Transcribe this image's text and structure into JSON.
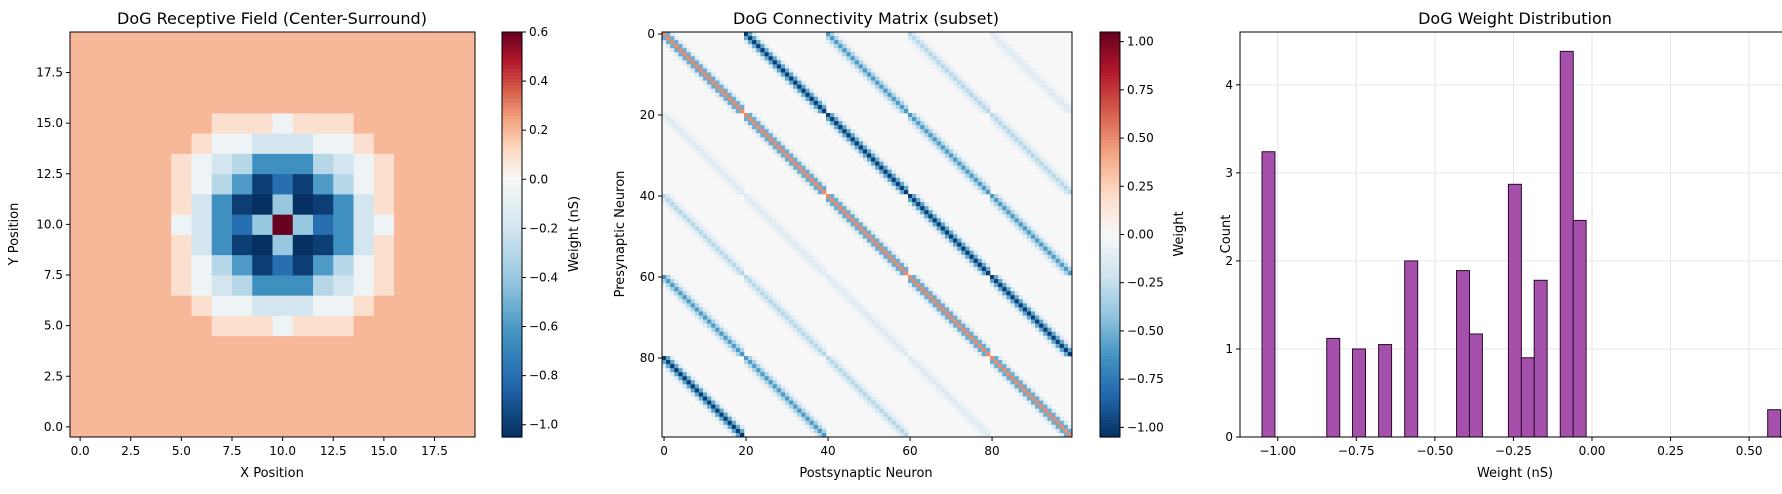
{
  "chart_data": [
    {
      "type": "heatmap",
      "title": "DoG Receptive Field (Center-Surround)",
      "xlabel": "X Position",
      "ylabel": "Y Position",
      "xticks": [
        "0.0",
        "2.5",
        "5.0",
        "7.5",
        "10.0",
        "12.5",
        "15.0",
        "17.5"
      ],
      "yticks": [
        "0.0",
        "2.5",
        "5.0",
        "7.5",
        "10.0",
        "12.5",
        "15.0",
        "17.5"
      ],
      "xlim": [
        -0.5,
        19.5
      ],
      "ylim": [
        -0.5,
        19.5
      ],
      "grid_size": 20,
      "center": [
        10,
        10
      ],
      "colormap": "RdBu_r",
      "vmin": -1.05,
      "vmax": 0.6,
      "colorbar": {
        "label": "Weight (nS)",
        "ticks": [
          "−1.0",
          "−0.8",
          "−0.6",
          "−0.4",
          "−0.2",
          "0.0",
          "0.2",
          "0.4",
          "0.6"
        ],
        "values": [
          -1.0,
          -0.8,
          -0.6,
          -0.4,
          -0.2,
          0.0,
          0.2,
          0.4,
          0.6
        ]
      },
      "radial_profile": [
        {
          "r2_max": 0,
          "value": 0.6
        },
        {
          "r2_max": 1,
          "value": -0.4
        },
        {
          "r2_max": 2,
          "value": -1.05
        },
        {
          "r2_max": 4,
          "value": -0.8
        },
        {
          "r2_max": 5,
          "value": -1.0
        },
        {
          "r2_max": 8,
          "value": -0.6
        },
        {
          "r2_max": 10,
          "value": -0.65
        },
        {
          "r2_max": 13,
          "value": -0.3
        },
        {
          "r2_max": 18,
          "value": -0.2
        },
        {
          "r2_max": 25,
          "value": -0.05
        },
        {
          "r2_max": 34,
          "value": 0.1
        },
        {
          "r2_max": 10000,
          "value": 0.2
        }
      ]
    },
    {
      "type": "heatmap",
      "title": "DoG Connectivity Matrix (subset)",
      "xlabel": "Postsynaptic Neuron",
      "ylabel": "Presynaptic Neuron",
      "xticks": [
        "0",
        "20",
        "40",
        "60",
        "80"
      ],
      "yticks": [
        "0",
        "20",
        "40",
        "60",
        "80"
      ],
      "xlim": [
        -0.5,
        99.5
      ],
      "ylim": [
        99.5,
        -0.5
      ],
      "size": 100,
      "block_size": 20,
      "colormap": "RdBu_r",
      "vmin": -1.05,
      "vmax": 1.05,
      "colorbar": {
        "label": "Weight",
        "ticks": [
          "−1.00",
          "−0.75",
          "−0.50",
          "−0.25",
          "0.00",
          "0.25",
          "0.50",
          "0.75",
          "1.00"
        ],
        "values": [
          -1.0,
          -0.75,
          -0.5,
          -0.25,
          0.0,
          0.25,
          0.5,
          0.75,
          1.0
        ]
      },
      "block_offset_weights": [
        {
          "offset": 0,
          "weight": -0.95
        },
        {
          "offset": 1,
          "weight": -1.0
        },
        {
          "offset": 2,
          "weight": -0.6
        },
        {
          "offset": 3,
          "weight": -0.3
        },
        {
          "offset": 4,
          "weight": -0.15
        }
      ],
      "diagonal_weight": 0.5
    },
    {
      "type": "bar",
      "title": "DoG Weight Distribution",
      "xlabel": "Weight (nS)",
      "ylabel": "Count",
      "xlim": [
        -1.12,
        0.63
      ],
      "ylim": [
        0,
        4.6
      ],
      "xticks": [
        "−1.00",
        "−0.75",
        "−0.50",
        "−0.25",
        "0.00",
        "0.25",
        "0.50"
      ],
      "xtick_values": [
        -1.0,
        -0.75,
        -0.5,
        -0.25,
        0.0,
        0.25,
        0.5
      ],
      "yticks": [
        "0",
        "1",
        "2",
        "3",
        "4"
      ],
      "ytick_values": [
        0,
        1,
        2,
        3,
        4
      ],
      "grid": true,
      "color": "#9b3ea3",
      "bin_width": 0.0413,
      "bins": [
        {
          "left": -1.05,
          "count": 3.24
        },
        {
          "left": -0.844,
          "count": 1.12
        },
        {
          "left": -0.762,
          "count": 1.0
        },
        {
          "left": -0.679,
          "count": 1.05
        },
        {
          "left": -0.596,
          "count": 2.0
        },
        {
          "left": -0.431,
          "count": 1.89
        },
        {
          "left": -0.39,
          "count": 1.17
        },
        {
          "left": -0.266,
          "count": 2.87
        },
        {
          "left": -0.225,
          "count": 0.9
        },
        {
          "left": -0.184,
          "count": 1.78
        },
        {
          "left": -0.101,
          "count": 4.38
        },
        {
          "left": -0.06,
          "count": 2.46
        },
        {
          "left": 0.559,
          "count": 0.31
        }
      ]
    }
  ]
}
